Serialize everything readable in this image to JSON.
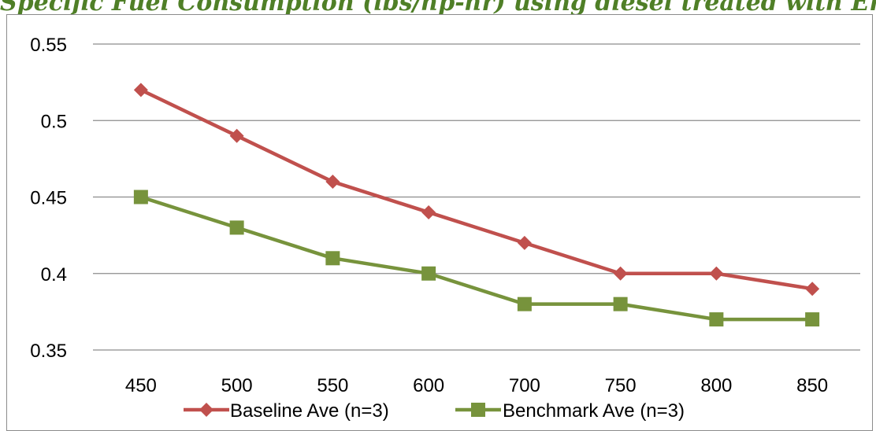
{
  "chart_data": {
    "type": "line",
    "title": "Specific Fuel Consumption (lbs/hp-hr) using diesel treated with Enerburn",
    "categories": [
      "450",
      "500",
      "550",
      "600",
      "700",
      "750",
      "800",
      "850"
    ],
    "series": [
      {
        "name": "Baseline Ave (n=3)",
        "color": "#c0504d",
        "marker": "diamond",
        "values": [
          0.52,
          0.49,
          0.46,
          0.44,
          0.42,
          0.4,
          0.4,
          0.39
        ]
      },
      {
        "name": "Benchmark Ave (n=3)",
        "color": "#77933c",
        "marker": "square",
        "values": [
          0.45,
          0.43,
          0.41,
          0.4,
          0.38,
          0.38,
          0.37,
          0.37
        ]
      }
    ],
    "yticks": [
      "0.35",
      "0.4",
      "0.45",
      "0.5",
      "0.55"
    ],
    "ylim": [
      0.35,
      0.55
    ],
    "grid": true,
    "legend": "bottom",
    "gridline_color": "#8c8c8c"
  }
}
